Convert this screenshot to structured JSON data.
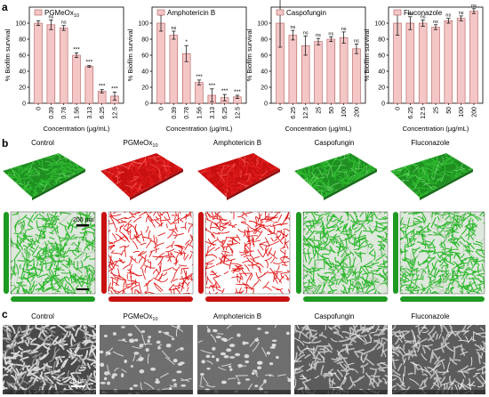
{
  "panels": {
    "a": "a",
    "b": "b",
    "c": "c"
  },
  "colors": {
    "bar_fill": "#f4c6c6",
    "bar_stroke": "#b25a5a",
    "biofilm_green": "#2eb82e",
    "biofilm_red": "#e01b1b",
    "sem_gray": "#8c8c8c"
  },
  "chart_data": [
    {
      "type": "bar",
      "legend": "PGMeOx",
      "legend_sub": "10",
      "categories": [
        "0",
        "0.39",
        "0.78",
        "1.56",
        "3.13",
        "6.25",
        "12.5"
      ],
      "values": [
        100,
        98,
        94,
        60,
        46,
        15,
        9
      ],
      "errors": [
        3,
        6,
        3,
        3,
        1,
        2,
        5
      ],
      "significance": [
        "",
        "ns",
        "ns",
        "***",
        "***",
        "***",
        "***"
      ],
      "xlabel": "Concentration (µg/mL)",
      "ylabel": "% Biofilm survival",
      "ylim": [
        0,
        120
      ],
      "yticks": [
        "0",
        "20",
        "40",
        "60",
        "80",
        "100"
      ]
    },
    {
      "type": "bar",
      "legend": "Amphotericin B",
      "categories": [
        "0",
        "0.39",
        "0.78",
        "1.56",
        "3.13",
        "6.25",
        "12.5"
      ],
      "values": [
        100,
        85,
        62,
        26,
        10,
        7,
        8
      ],
      "errors": [
        10,
        5,
        10,
        3,
        8,
        4,
        2
      ],
      "significance": [
        "",
        "ns",
        "*",
        "***",
        "***",
        "***",
        "***"
      ],
      "xlabel": "Concentration (µg/mL)",
      "ylabel": "% Biofilm survival",
      "ylim": [
        0,
        120
      ],
      "yticks": [
        "0",
        "20",
        "40",
        "60",
        "80",
        "100"
      ]
    },
    {
      "type": "bar",
      "legend": "Caspofungin",
      "categories": [
        "0",
        "6.25",
        "12.5",
        "25",
        "50",
        "100",
        "200"
      ],
      "values": [
        100,
        85,
        72,
        77,
        80,
        82,
        68
      ],
      "errors": [
        30,
        6,
        12,
        4,
        3,
        7,
        6
      ],
      "significance": [
        "",
        "ns",
        "ns",
        "ns",
        "ns",
        "ns",
        "ns"
      ],
      "xlabel": "Concentration (µg/mL)",
      "ylabel": "% Biofilm survival",
      "ylim": [
        0,
        120
      ],
      "yticks": [
        "0",
        "20",
        "40",
        "60",
        "80",
        "100"
      ]
    },
    {
      "type": "bar",
      "legend": "Fluconazole",
      "categories": [
        "0",
        "6.25",
        "12.5",
        "25",
        "50",
        "100",
        "200"
      ],
      "values": [
        100,
        100,
        100,
        95,
        103,
        106,
        115
      ],
      "errors": [
        15,
        8,
        4,
        3,
        3,
        3,
        3
      ],
      "significance": [
        "",
        "ns",
        "ns",
        "ns",
        "ns",
        "ns",
        "ns"
      ],
      "xlabel": "Concentration (µg/mL)",
      "ylabel": "% Biofilm survival",
      "ylim": [
        0,
        120
      ],
      "yticks": [
        "0",
        "20",
        "40",
        "60",
        "80",
        "100"
      ]
    }
  ],
  "micro_labels": [
    {
      "text": "Control"
    },
    {
      "text": "PGMeOx",
      "sub": "10"
    },
    {
      "text": "Amphotericin B"
    },
    {
      "text": "Caspofungin"
    },
    {
      "text": "Fluconazole"
    }
  ],
  "micro_colors": [
    "green",
    "red",
    "red",
    "green",
    "green"
  ],
  "scale_b": "200 µm",
  "scale_c": "20 µm"
}
